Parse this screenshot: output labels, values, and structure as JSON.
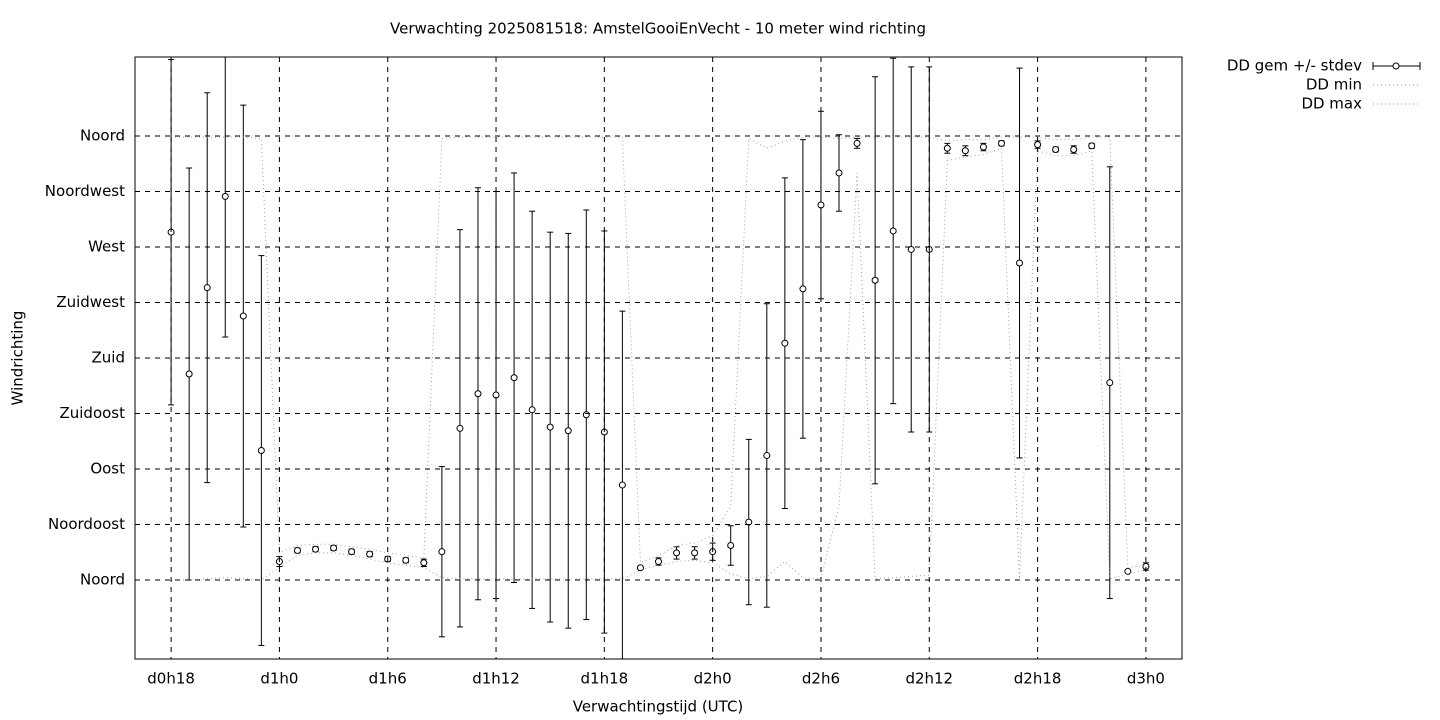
{
  "chart_data": {
    "type": "errorbar",
    "title": "Verwachting 2025081518: AmstelGooiEnVecht - 10 meter wind richting",
    "x_label": "Verwachtingstijd (UTC)",
    "y_label": "Windrichting",
    "x": [
      18,
      19,
      20,
      21,
      22,
      23,
      24,
      25,
      26,
      27,
      28,
      29,
      30,
      31,
      32,
      33,
      34,
      35,
      36,
      37,
      38,
      39,
      40,
      41,
      42,
      43,
      44,
      45,
      46,
      47,
      48,
      49,
      50,
      51,
      52,
      53,
      54,
      55,
      56,
      57,
      58,
      59,
      60,
      61,
      62,
      63,
      64,
      65,
      66,
      67,
      68,
      69,
      70,
      71,
      72
    ],
    "series": [
      {
        "name": "DD gem +/- stdev",
        "color": "#000000",
        "style": "errorbar",
        "values": [
          282,
          167,
          237,
          311,
          214,
          105,
          15,
          24,
          25,
          26,
          23,
          21,
          17,
          16,
          14,
          23,
          123,
          151,
          150,
          164,
          138,
          124,
          121,
          134,
          120,
          77,
          10,
          15,
          22,
          22,
          23,
          28,
          47,
          101,
          192,
          236,
          304,
          330,
          354,
          243,
          283,
          268,
          268,
          350,
          348,
          351,
          354,
          257,
          353,
          349,
          349,
          352,
          160,
          7,
          11
        ],
        "errors": [
          140,
          167,
          158,
          114,
          171,
          158,
          4,
          2,
          2,
          2,
          2,
          2,
          2,
          2,
          3,
          69,
          161,
          167,
          165,
          166,
          161,
          158,
          160,
          166,
          163,
          141,
          1,
          3,
          5,
          5,
          7,
          16,
          67,
          123,
          134,
          121,
          76,
          31,
          4,
          165,
          140,
          148,
          148,
          4,
          4,
          3,
          2,
          158,
          3,
          2,
          3,
          2,
          175,
          1,
          3
        ]
      },
      {
        "name": "DD min",
        "color": "#a0a0a0",
        "style": "dotted",
        "values": [
          0,
          0,
          1,
          2,
          1,
          0,
          10,
          20,
          22,
          22,
          20,
          17,
          14,
          12,
          10,
          2,
          1,
          1,
          1,
          1,
          1,
          1,
          1,
          1,
          1,
          1,
          8,
          12,
          15,
          16,
          14,
          5,
          1,
          3,
          15,
          2,
          1,
          60,
          330,
          1,
          2,
          3,
          4,
          340,
          343,
          345,
          350,
          1,
          348,
          344,
          344,
          348,
          1,
          5,
          8
        ]
      },
      {
        "name": "DD max",
        "color": "#a0a0a0",
        "style": "dotted",
        "values": [
          359,
          359,
          359,
          359,
          359,
          358,
          22,
          28,
          29,
          29,
          27,
          25,
          22,
          20,
          18,
          358,
          359,
          359,
          359,
          359,
          359,
          359,
          359,
          359,
          359,
          359,
          14,
          20,
          28,
          30,
          36,
          60,
          358,
          350,
          356,
          359,
          359,
          358,
          359,
          359,
          359,
          359,
          359,
          356,
          357,
          357,
          359,
          359,
          359,
          357,
          357,
          359,
          359,
          10,
          12
        ]
      }
    ],
    "xlim": [
      16,
      74
    ],
    "ylim": [
      -64,
      424
    ],
    "xticks": [
      {
        "value": 18,
        "label": "d0h18"
      },
      {
        "value": 24,
        "label": "d1h0"
      },
      {
        "value": 30,
        "label": "d1h6"
      },
      {
        "value": 36,
        "label": "d1h12"
      },
      {
        "value": 42,
        "label": "d1h18"
      },
      {
        "value": 48,
        "label": "d2h0"
      },
      {
        "value": 54,
        "label": "d2h6"
      },
      {
        "value": 60,
        "label": "d2h12"
      },
      {
        "value": 66,
        "label": "d2h18"
      },
      {
        "value": 72,
        "label": "d3h0"
      }
    ],
    "yticks": [
      {
        "value": 0,
        "label": "Noord"
      },
      {
        "value": 45,
        "label": "Noordoost"
      },
      {
        "value": 90,
        "label": "Oost"
      },
      {
        "value": 135,
        "label": "Zuidoost"
      },
      {
        "value": 180,
        "label": "Zuid"
      },
      {
        "value": 225,
        "label": "Zuidwest"
      },
      {
        "value": 270,
        "label": "West"
      },
      {
        "value": 315,
        "label": "Noordwest"
      },
      {
        "value": 360,
        "label": "Noord"
      }
    ],
    "grid": true,
    "legend": "outside-top-right"
  }
}
